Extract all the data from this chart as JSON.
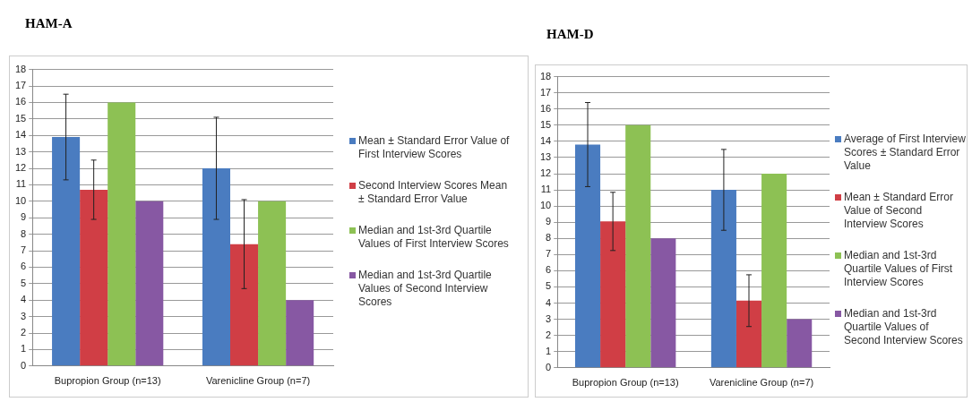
{
  "chart_data": [
    {
      "type": "bar",
      "title": "HAM-A",
      "categories": [
        "Bupropion Group (n=13)",
        "Varenicline Group (n=7)"
      ],
      "ylim": [
        0,
        18
      ],
      "yticks": [
        0,
        1,
        2,
        3,
        4,
        5,
        6,
        7,
        8,
        9,
        10,
        11,
        12,
        13,
        14,
        15,
        16,
        17,
        18
      ],
      "grid": "y",
      "legend": "right",
      "series": [
        {
          "name": "Mean ± Standard Error Value of First Interview Scores",
          "color": "#4a7cc0",
          "values": [
            13.9,
            12
          ],
          "errors": [
            2.6,
            3.1
          ]
        },
        {
          "name": "Second Interview Scores Mean ± Standard Error Value",
          "color": "#d03e45",
          "values": [
            10.7,
            7.4
          ],
          "errors": [
            1.8,
            2.7
          ]
        },
        {
          "name": "Median and 1st-3rd Quartile Values of First Interview Scores",
          "color": "#8dc154",
          "values": [
            16,
            10
          ]
        },
        {
          "name": "Median and 1st-3rd Quartile Values of Second Interview Scores",
          "color": "#8758a3",
          "values": [
            10,
            4
          ]
        }
      ]
    },
    {
      "type": "bar",
      "title": "HAM-D",
      "categories": [
        "Bupropion Group (n=13)",
        "Varenicline Group (n=7)"
      ],
      "ylim": [
        0,
        18
      ],
      "yticks": [
        0,
        1,
        2,
        3,
        4,
        5,
        6,
        7,
        8,
        9,
        10,
        11,
        12,
        13,
        14,
        15,
        16,
        17,
        18
      ],
      "grid": "y",
      "legend": "right",
      "series": [
        {
          "name": "Average of First Interview Scores ± Standard Error Value",
          "color": "#4a7cc0",
          "values": [
            13.8,
            11
          ],
          "errors": [
            2.6,
            2.5
          ]
        },
        {
          "name": "Mean ± Standard Error Value of Second Interview Scores",
          "color": "#d03e45",
          "values": [
            9.05,
            4.15
          ],
          "errors": [
            1.8,
            1.6
          ]
        },
        {
          "name": "Median and 1st-3rd Quartile Values of First Interview Scores",
          "color": "#8dc154",
          "values": [
            15,
            12
          ]
        },
        {
          "name": "Median and 1st-3rd Quartile Values of Second Interview Scores",
          "color": "#8758a3",
          "values": [
            8,
            3
          ]
        }
      ]
    }
  ]
}
